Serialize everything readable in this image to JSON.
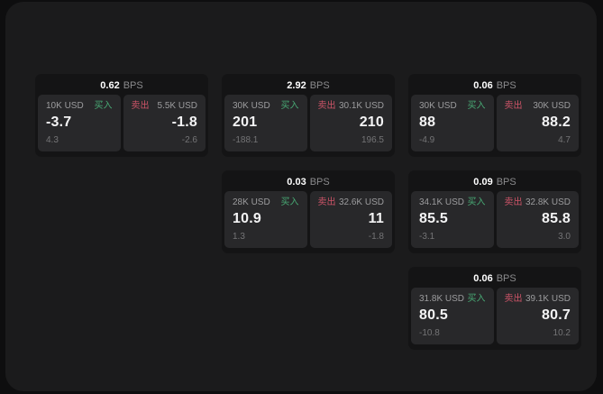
{
  "labels": {
    "buy": "买入",
    "sell": "卖出",
    "bps": "BPS"
  },
  "colors": {
    "buy_green": "#48a974",
    "sell_red": "#cd5468",
    "panel_bg": "#1b1b1c",
    "card_bg": "#141415",
    "side_bg": "#28282a"
  },
  "cards": [
    {
      "bps": "0.62",
      "buy": {
        "size": "10K USD",
        "value": "-3.7",
        "delta": "4.3"
      },
      "sell": {
        "size": "5.5K USD",
        "value": "-1.8",
        "delta": "-2.6"
      }
    },
    {
      "bps": "2.92",
      "buy": {
        "size": "30K USD",
        "value": "201",
        "delta": "-188.1"
      },
      "sell": {
        "size": "30.1K USD",
        "value": "210",
        "delta": "196.5"
      }
    },
    {
      "bps": "0.06",
      "buy": {
        "size": "30K USD",
        "value": "88",
        "delta": "-4.9"
      },
      "sell": {
        "size": "30K USD",
        "value": "88.2",
        "delta": "4.7"
      }
    },
    {
      "bps": "0.03",
      "buy": {
        "size": "28K USD",
        "value": "10.9",
        "delta": "1.3"
      },
      "sell": {
        "size": "32.6K USD",
        "value": "11",
        "delta": "-1.8"
      }
    },
    {
      "bps": "0.09",
      "buy": {
        "size": "34.1K USD",
        "value": "85.5",
        "delta": "-3.1"
      },
      "sell": {
        "size": "32.8K USD",
        "value": "85.8",
        "delta": "3.0"
      }
    },
    {
      "bps": "0.06",
      "buy": {
        "size": "31.8K USD",
        "value": "80.5",
        "delta": "-10.8"
      },
      "sell": {
        "size": "39.1K USD",
        "value": "80.7",
        "delta": "10.2"
      }
    }
  ]
}
